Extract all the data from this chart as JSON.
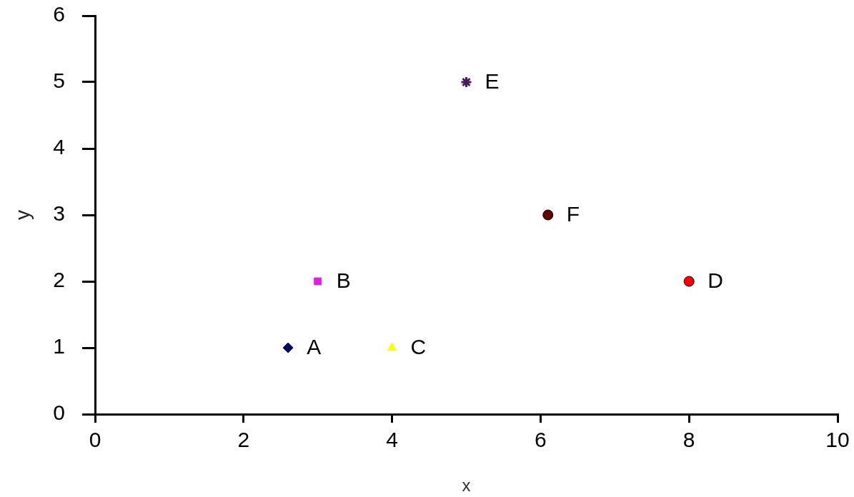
{
  "chart_data": {
    "type": "scatter",
    "xlabel": "x",
    "ylabel": "y",
    "xlim": [
      0,
      10
    ],
    "xticks": [
      0,
      2,
      4,
      6,
      8,
      10
    ],
    "ylim": [
      0,
      6
    ],
    "yticks": [
      0,
      1,
      2,
      3,
      4,
      5,
      6
    ],
    "grid": false,
    "legend": false,
    "series": [
      {
        "name": "A",
        "color": "#000066",
        "marker": "diamond",
        "x": [
          2.6
        ],
        "values": [
          1
        ]
      },
      {
        "name": "B",
        "color": "#e020e0",
        "marker": "square",
        "x": [
          3
        ],
        "values": [
          2
        ]
      },
      {
        "name": "C",
        "color": "#ffff00",
        "marker": "triangle",
        "x": [
          4
        ],
        "values": [
          1
        ]
      },
      {
        "name": "D",
        "color": "#ff0000",
        "marker": "circle",
        "x": [
          8
        ],
        "values": [
          2
        ]
      },
      {
        "name": "E",
        "color": "#4b1a5a",
        "marker": "cross",
        "x": [
          5
        ],
        "values": [
          5
        ]
      },
      {
        "name": "F",
        "color": "#660000",
        "marker": "circle",
        "x": [
          6.1
        ],
        "values": [
          3
        ]
      }
    ]
  }
}
